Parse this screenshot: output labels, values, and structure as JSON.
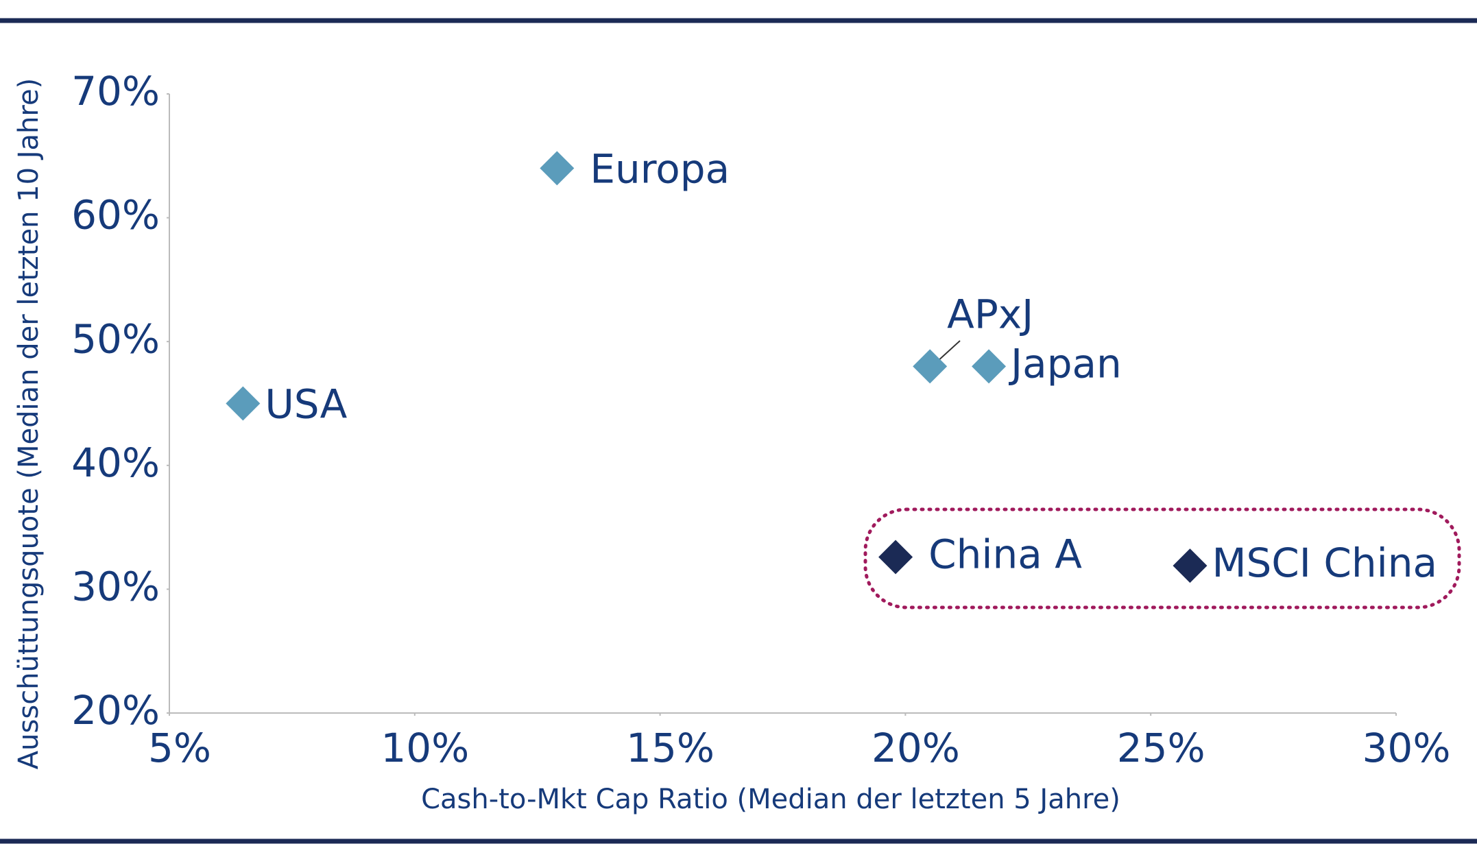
{
  "chart_data": {
    "type": "scatter",
    "xlabel": "Cash-to-Mkt Cap Ratio (Median der letzten 5 Jahre)",
    "ylabel": "Ausschüttungsquote (Median der letzten 10 Jahre)",
    "xlim": [
      5,
      30
    ],
    "ylim": [
      20,
      70
    ],
    "xticks": [
      {
        "value": 5,
        "label": "5%"
      },
      {
        "value": 10,
        "label": "10%"
      },
      {
        "value": 15,
        "label": "15%"
      },
      {
        "value": 20,
        "label": "20%"
      },
      {
        "value": 25,
        "label": "25%"
      },
      {
        "value": 30,
        "label": "30%"
      }
    ],
    "yticks": [
      {
        "value": 20,
        "label": "20%"
      },
      {
        "value": 30,
        "label": "30%"
      },
      {
        "value": 40,
        "label": "40%"
      },
      {
        "value": 50,
        "label": "50%"
      },
      {
        "value": 60,
        "label": "60%"
      },
      {
        "value": 70,
        "label": "70%"
      }
    ],
    "points": [
      {
        "label": "USA",
        "x": 6.5,
        "y": 45,
        "color": "#5b9cbb"
      },
      {
        "label": "Europa",
        "x": 12.9,
        "y": 64,
        "color": "#5b9cbb"
      },
      {
        "label": "APxJ",
        "x": 20.5,
        "y": 48,
        "color": "#5b9cbb"
      },
      {
        "label": "Japan",
        "x": 21.7,
        "y": 48,
        "color": "#5b9cbb"
      },
      {
        "label": "China A",
        "x": 19.8,
        "y": 32.6,
        "color": "#1b2a55"
      },
      {
        "label": "MSCI China",
        "x": 25.8,
        "y": 31.9,
        "color": "#1b2a55"
      }
    ]
  }
}
